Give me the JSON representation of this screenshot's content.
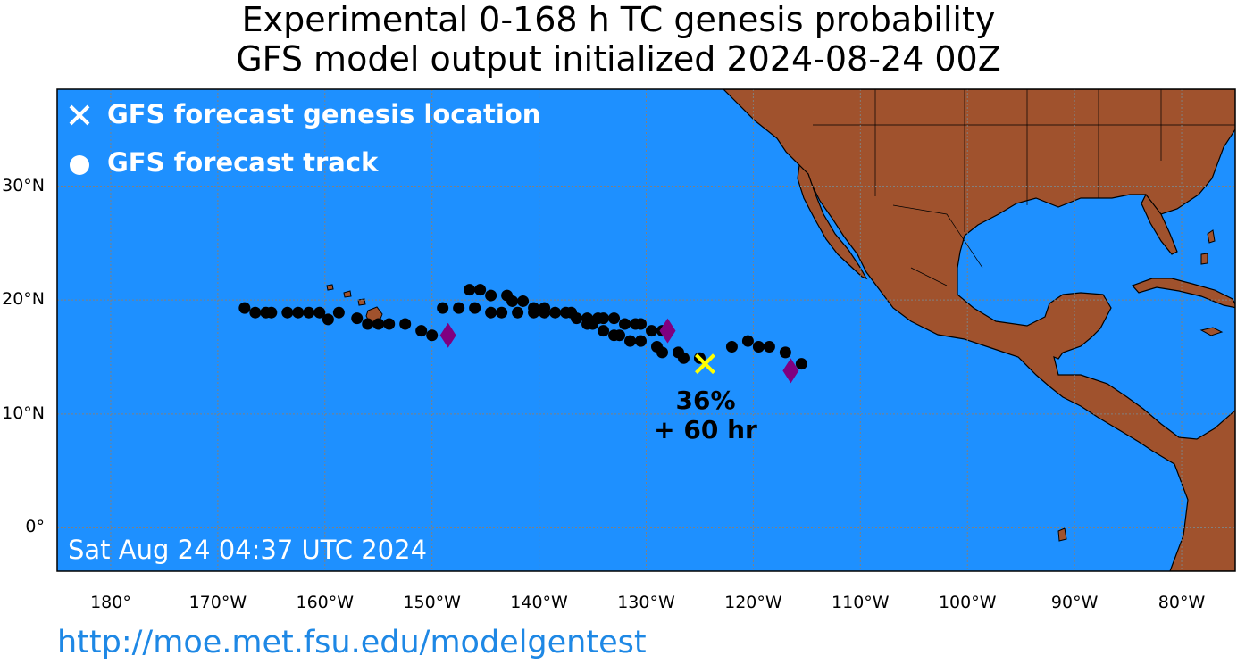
{
  "title_line1": "Experimental 0-168 h TC genesis probability",
  "title_line2": "GFS model output initialized 2024-08-24 00Z",
  "legend": {
    "genesis_label": "GFS forecast genesis location",
    "track_label": "GFS forecast track"
  },
  "timestamp": "Sat Aug 24 04:37 UTC 2024",
  "url": "http://moe.met.fsu.edu/modelgentest",
  "genesis": {
    "lon": -124.5,
    "lat": 14.4,
    "probability": "36%",
    "lead_time": "+ 60 hr"
  },
  "lon_ticks": [
    {
      "value": -180,
      "label": "180°"
    },
    {
      "value": -170,
      "label": "170°W"
    },
    {
      "value": -160,
      "label": "160°W"
    },
    {
      "value": -150,
      "label": "150°W"
    },
    {
      "value": -140,
      "label": "140°W"
    },
    {
      "value": -130,
      "label": "130°W"
    },
    {
      "value": -120,
      "label": "120°W"
    },
    {
      "value": -110,
      "label": "110°W"
    },
    {
      "value": -100,
      "label": "100°W"
    },
    {
      "value": -90,
      "label": "90°W"
    },
    {
      "value": -80,
      "label": "80°W"
    }
  ],
  "lat_ticks": [
    {
      "value": 30,
      "label": "30°N"
    },
    {
      "value": 20,
      "label": "20°N"
    },
    {
      "value": 10,
      "label": "10°N"
    },
    {
      "value": 0,
      "label": "0°"
    }
  ],
  "extent": {
    "lon_min": -185,
    "lon_max": -75,
    "lat_min": -3.8,
    "lat_max": 38.5
  },
  "colors": {
    "ocean": "#1e90ff",
    "land": "#a0522d",
    "track": "#000000",
    "genesis": "#ffff00",
    "diamond": "#800080",
    "grid": "#808080"
  },
  "track_points": [
    [
      -167.5,
      19.3
    ],
    [
      -166.5,
      18.9
    ],
    [
      -165.5,
      18.9
    ],
    [
      -165,
      18.9
    ],
    [
      -163.5,
      18.9
    ],
    [
      -162.5,
      18.9
    ],
    [
      -161.5,
      18.9
    ],
    [
      -160.5,
      18.9
    ],
    [
      -159.7,
      18.3
    ],
    [
      -158.7,
      18.9
    ],
    [
      -157,
      18.4
    ],
    [
      -156,
      17.9
    ],
    [
      -155,
      17.9
    ],
    [
      -154,
      17.9
    ],
    [
      -152.5,
      17.9
    ],
    [
      -151,
      17.3
    ],
    [
      -150,
      16.9
    ],
    [
      -149,
      19.3
    ],
    [
      -147.5,
      19.3
    ],
    [
      -146.5,
      20.9
    ],
    [
      -145.5,
      20.9
    ],
    [
      -146,
      19.3
    ],
    [
      -144.5,
      20.4
    ],
    [
      -144.5,
      18.9
    ],
    [
      -143.5,
      18.9
    ],
    [
      -143,
      20.4
    ],
    [
      -142.5,
      19.9
    ],
    [
      -142,
      18.9
    ],
    [
      -141.5,
      19.9
    ],
    [
      -140.5,
      19.3
    ],
    [
      -140.5,
      18.9
    ],
    [
      -139.5,
      19.3
    ],
    [
      -139.5,
      18.9
    ],
    [
      -138.5,
      18.9
    ],
    [
      -137.5,
      18.9
    ],
    [
      -137,
      18.9
    ],
    [
      -136.5,
      18.4
    ],
    [
      -135.5,
      18.4
    ],
    [
      -135.5,
      17.9
    ],
    [
      -135,
      17.9
    ],
    [
      -134.5,
      18.4
    ],
    [
      -134,
      18.4
    ],
    [
      -134,
      17.3
    ],
    [
      -133,
      18.4
    ],
    [
      -133,
      16.9
    ],
    [
      -132.5,
      16.9
    ],
    [
      -132,
      17.9
    ],
    [
      -131,
      17.9
    ],
    [
      -130.5,
      17.9
    ],
    [
      -131.5,
      16.4
    ],
    [
      -130.5,
      16.4
    ],
    [
      -129.5,
      17.3
    ],
    [
      -128.5,
      17.3
    ],
    [
      -129,
      15.9
    ],
    [
      -128.5,
      15.4
    ],
    [
      -127,
      15.4
    ],
    [
      -126.5,
      14.9
    ],
    [
      -125,
      14.9
    ],
    [
      -122,
      15.9
    ],
    [
      -120.5,
      16.4
    ],
    [
      -119.5,
      15.9
    ],
    [
      -118.5,
      15.9
    ],
    [
      -117,
      15.4
    ],
    [
      -115.5,
      14.4
    ]
  ],
  "diamonds": [
    [
      -148.5,
      16.9
    ],
    [
      -128,
      17.3
    ],
    [
      -116.5,
      13.8
    ]
  ]
}
